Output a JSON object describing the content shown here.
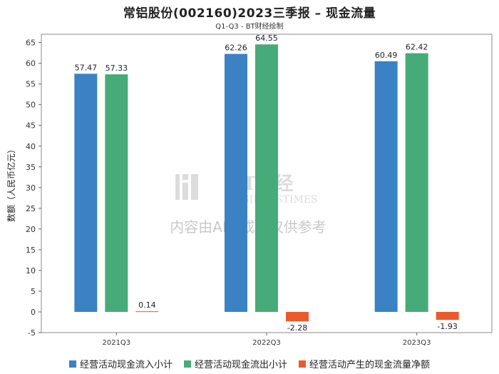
{
  "header": {
    "title": "常铝股份(002160)2023三季报 – 现金流量",
    "subtitle": "Q1-Q3 - BT财经绘制"
  },
  "watermark": {
    "brand": "BT财经",
    "brand_sub": "BUSINESSTIMES",
    "disclaimer": "内容由AI生成，仅供参考"
  },
  "chart_data": {
    "type": "bar",
    "categories": [
      "2021Q3",
      "2022Q3",
      "2023Q3"
    ],
    "series": [
      {
        "name": "经营活动现金流入小计",
        "color": "#3a82c4",
        "values": [
          57.47,
          62.26,
          60.49
        ]
      },
      {
        "name": "经营活动现金流出小计",
        "color": "#46ab78",
        "values": [
          57.33,
          64.55,
          62.42
        ]
      },
      {
        "name": "经营活动产生的现金流量净额",
        "color": "#ea5a2d",
        "values": [
          0.14,
          -2.28,
          -1.93
        ]
      }
    ],
    "ylabel": "数额（人民币亿元）",
    "ylim": [
      -5,
      67
    ],
    "yticks": [
      -5,
      0,
      5,
      10,
      15,
      20,
      25,
      30,
      35,
      40,
      45,
      50,
      55,
      60,
      65
    ],
    "legend_position": "bottom",
    "grid": false
  }
}
